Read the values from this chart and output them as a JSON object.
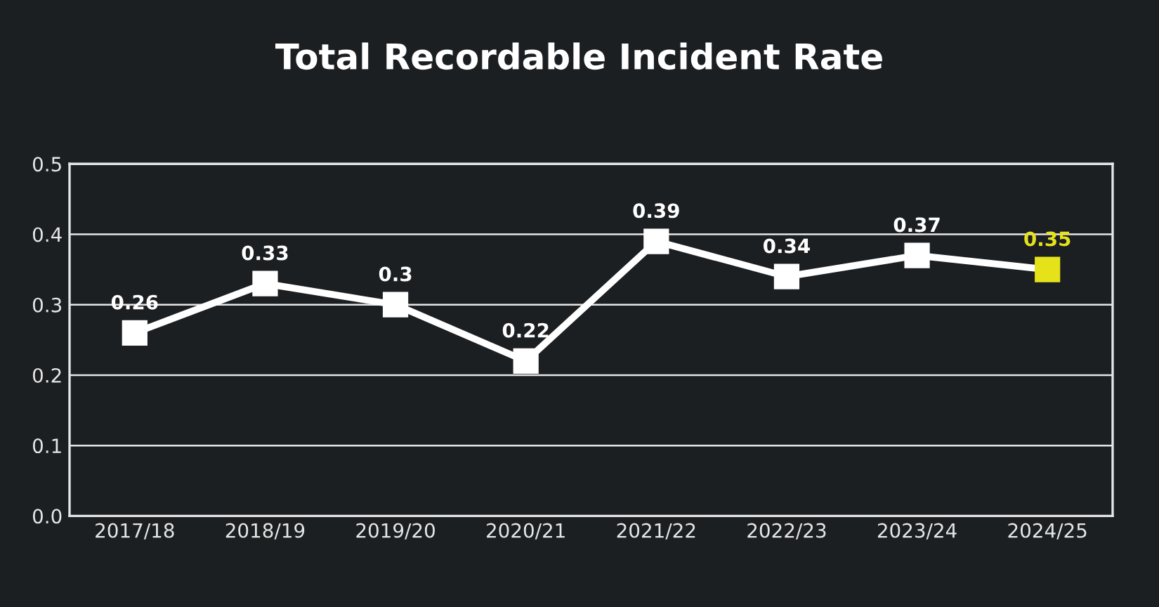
{
  "chart_data": {
    "type": "line",
    "title": "Total Recordable Incident Rate",
    "categories": [
      "2017/18",
      "2018/19",
      "2019/20",
      "2020/21",
      "2021/22",
      "2022/23",
      "2023/24",
      "2024/25"
    ],
    "series": [
      {
        "color": "#ffffff",
        "colors": [
          "#ffffff",
          "#ffffff",
          "#ffffff",
          "#ffffff",
          "#ffffff",
          "#ffffff",
          "#ffffff",
          "#e6e21a"
        ],
        "values": [
          0.26,
          0.33,
          0.3,
          0.22,
          0.39,
          0.34,
          0.37,
          0.35
        ]
      }
    ],
    "ylim": [
      0,
      0.5
    ],
    "yticks": [
      {
        "value": 0,
        "label": "0.0"
      },
      0.1,
      0.2,
      0.3,
      0.4,
      0.5
    ],
    "grid": "y",
    "marker": "square",
    "line_style": "solid",
    "data_labels": true,
    "legend": false
  }
}
